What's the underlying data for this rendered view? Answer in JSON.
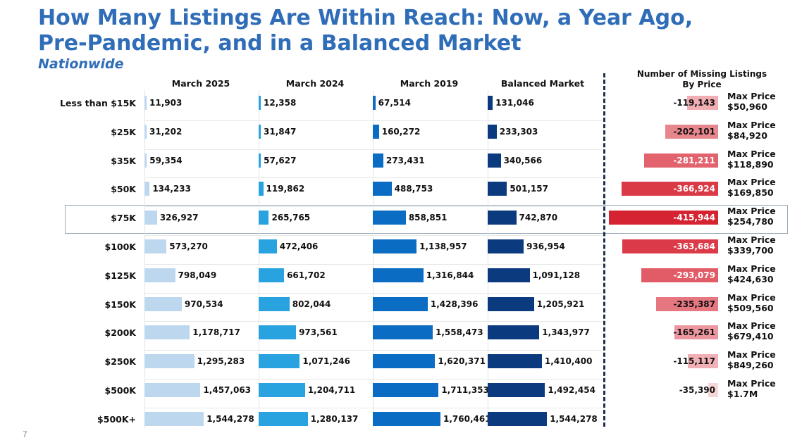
{
  "title": "How Many Listings Are Within Reach: Now, a Year Ago, Pre-Pandemic, and in a Balanced Market",
  "subtitle": "Nationwide",
  "page_number": "7",
  "missing_header": [
    "Number of Missing Listings",
    "By Price"
  ],
  "max_price_label": "Max Price",
  "colors": {
    "title": "#2f6db8",
    "march_2025": "#bdd7ee",
    "march_2024": "#29a3e0",
    "march_2019": "#0a6cc2",
    "balanced": "#0b3a7e"
  },
  "chart_data": {
    "type": "bar",
    "orientation": "horizontal",
    "categories": [
      "Less than $15K",
      "$25K",
      "$35K",
      "$50K",
      "$75K",
      "$100K",
      "$125K",
      "$150K",
      "$200K",
      "$250K",
      "$500K",
      "$500K+"
    ],
    "series": [
      {
        "name": "March 2025",
        "values": [
          11903,
          31202,
          59354,
          134233,
          326927,
          573270,
          798049,
          970534,
          1178717,
          1295283,
          1457063,
          1544278
        ],
        "labels": [
          "11,903",
          "31,202",
          "59,354",
          "134,233",
          "326,927",
          "573,270",
          "798,049",
          "970,534",
          "1,178,717",
          "1,295,283",
          "1,457,063",
          "1,544,278"
        ]
      },
      {
        "name": "March 2024",
        "values": [
          12358,
          31847,
          57627,
          119862,
          265765,
          472406,
          661702,
          802044,
          973561,
          1071246,
          1204711,
          1280137
        ],
        "labels": [
          "12,358",
          "31,847",
          "57,627",
          "119,862",
          "265,765",
          "472,406",
          "661,702",
          "802,044",
          "973,561",
          "1,071,246",
          "1,204,711",
          "1,280,137"
        ]
      },
      {
        "name": "March 2019",
        "values": [
          67514,
          160272,
          273431,
          488753,
          858851,
          1138957,
          1316844,
          1428396,
          1558473,
          1620371,
          1711353,
          1760461
        ],
        "labels": [
          "67,514",
          "160,272",
          "273,431",
          "488,753",
          "858,851",
          "1,138,957",
          "1,316,844",
          "1,428,396",
          "1,558,473",
          "1,620,371",
          "1,711,353",
          "1,760,461"
        ]
      },
      {
        "name": "Balanced Market",
        "values": [
          131046,
          233303,
          340566,
          501157,
          742870,
          936954,
          1091128,
          1205921,
          1343977,
          1410400,
          1492454,
          1544278
        ],
        "labels": [
          "131,046",
          "233,303",
          "340,566",
          "501,157",
          "742,870",
          "936,954",
          "1,091,128",
          "1,205,921",
          "1,343,977",
          "1,410,400",
          "1,492,454",
          "1,544,278"
        ]
      }
    ],
    "missing": {
      "name": "Number of Missing Listings By Price",
      "values": [
        -119143,
        -202101,
        -281211,
        -366924,
        -415944,
        -363684,
        -293079,
        -235387,
        -165261,
        -115117,
        -35390,
        null
      ],
      "labels": [
        "-119,143",
        "-202,101",
        "-281,211",
        "-366,924",
        "-415,944",
        "-363,684",
        "-293,079",
        "-235,387",
        "-165,261",
        "-115,117",
        "-35,390",
        ""
      ]
    },
    "max_prices": [
      "$50,960",
      "$84,920",
      "$118,890",
      "$169,850",
      "$254,780",
      "$339,700",
      "$424,630",
      "$509,560",
      "$679,410",
      "$849,260",
      "$1.7M",
      ""
    ],
    "highlighted_category": "$75K"
  }
}
